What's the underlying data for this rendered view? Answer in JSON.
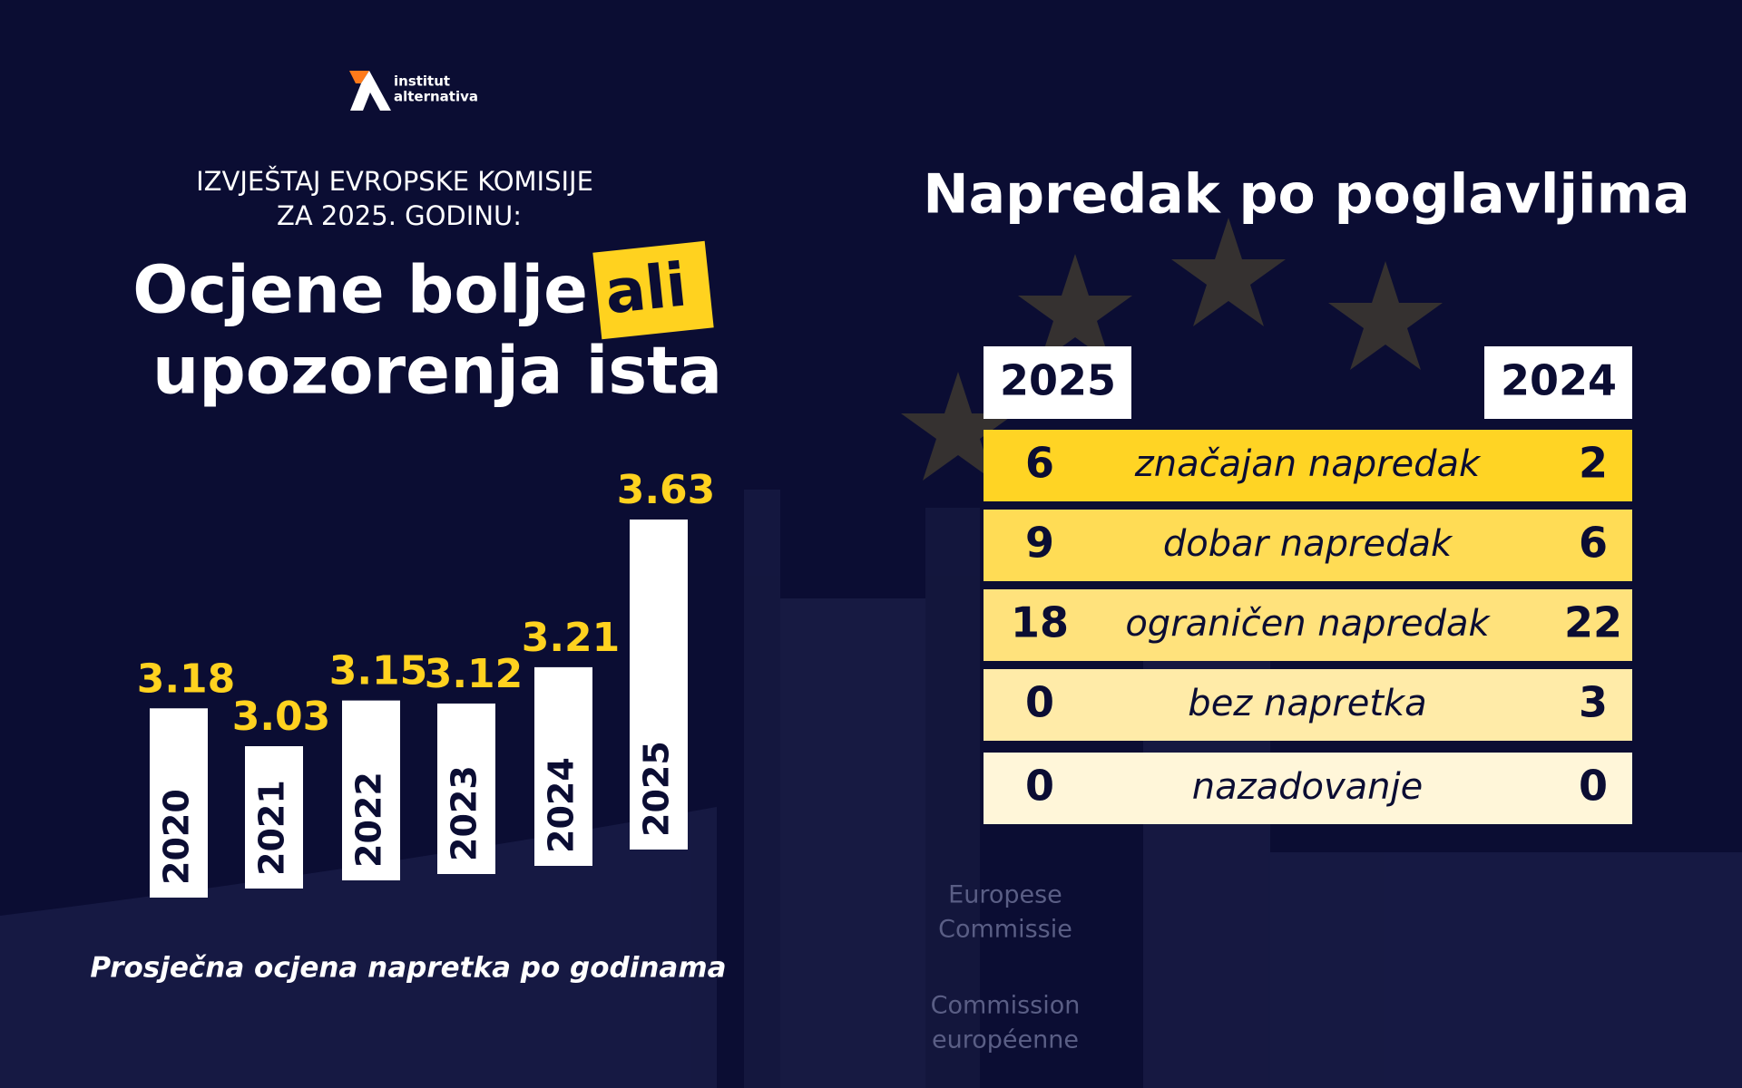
{
  "logo": {
    "line1": "institut",
    "line2": "alternativa"
  },
  "header": {
    "kicker_line1": "IZVJEŠTAJ EVROPSKE KOMISIJE",
    "kicker_line2": "ZA 2025. GODINU:",
    "title_part1": "Ocjene bolje",
    "highlight": "ali",
    "title_line2": "upozorenja ista"
  },
  "chart_data": {
    "type": "bar",
    "categories": [
      "2020",
      "2021",
      "2022",
      "2023",
      "2024",
      "2025"
    ],
    "values": [
      3.18,
      3.03,
      3.15,
      3.12,
      3.21,
      3.63
    ],
    "color": "#ffffff",
    "label_color": "#ffd21f",
    "caption": "Prosječna ocjena napretka po godinama"
  },
  "table": {
    "title": "Napredak po poglavljima",
    "headers": [
      "2025",
      "2024"
    ],
    "rows": [
      {
        "left": "6",
        "label": "značajan napredak",
        "right": "2",
        "color": "#ffd424"
      },
      {
        "left": "9",
        "label": "dobar napredak",
        "right": "6",
        "color": "#ffdc55"
      },
      {
        "left": "18",
        "label": "ograničen napredak",
        "right": "22",
        "color": "#ffe27c"
      },
      {
        "left": "0",
        "label": "bez napretka",
        "right": "3",
        "color": "#ffeba8"
      },
      {
        "left": "0",
        "label": "nazadovanje",
        "right": "0",
        "color": "#fff6d9"
      }
    ]
  },
  "background_text": [
    "Europese",
    "Commissie",
    "Commission",
    "européenne"
  ]
}
